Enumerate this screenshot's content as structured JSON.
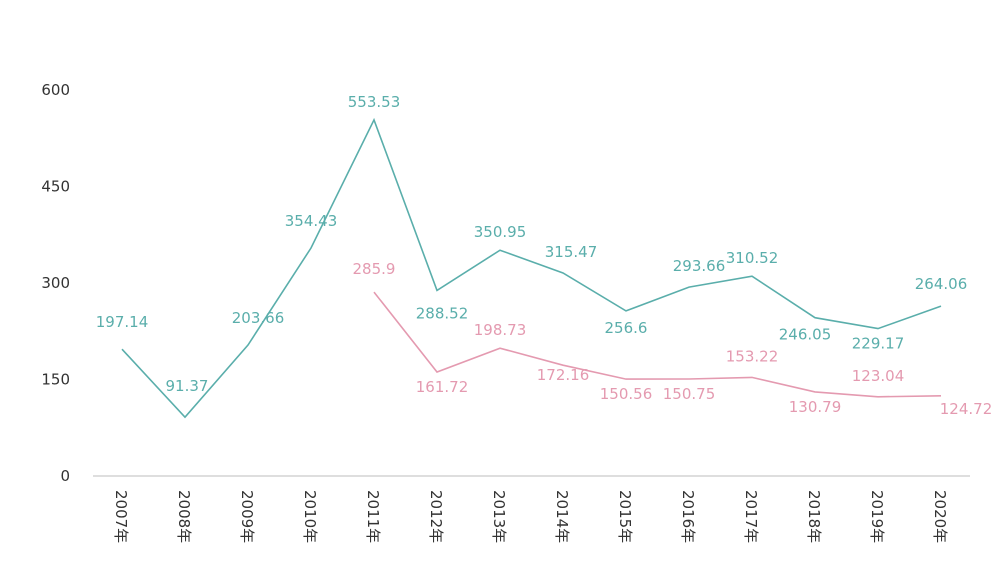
{
  "chart_data": {
    "type": "line",
    "title": "",
    "xlabel": "",
    "ylabel": "",
    "categories": [
      "2007年",
      "2008年",
      "2009年",
      "2010年",
      "2011年",
      "2012年",
      "2013年",
      "2014年",
      "2015年",
      "2016年",
      "2017年",
      "2018年",
      "2019年",
      "2020年"
    ],
    "ylim": [
      0,
      600
    ],
    "yticks": [
      0,
      150,
      300,
      450,
      600
    ],
    "grid": false,
    "series": [
      {
        "color": "#5aaeab",
        "values": [
          197.14,
          91.37,
          203.66,
          354.43,
          553.53,
          288.52,
          350.95,
          315.47,
          256.6,
          293.66,
          310.52,
          246.05,
          229.17,
          264.06
        ],
        "labels": [
          "197.14",
          "91.37",
          "203.66",
          "354.43",
          "553.53",
          "288.52",
          "350.95",
          "315.47",
          "256.6",
          "293.66",
          "310.52",
          "246.05",
          "229.17",
          "264.06"
        ]
      },
      {
        "color": "#e49ab0",
        "values": [
          null,
          null,
          null,
          null,
          285.9,
          161.72,
          198.73,
          172.16,
          150.56,
          150.75,
          153.22,
          130.79,
          123.04,
          124.72
        ],
        "labels": [
          null,
          null,
          null,
          null,
          "285.9",
          "161.72",
          "198.73",
          "172.16",
          "150.56",
          "150.75",
          "153.22",
          "130.79",
          "123.04",
          "124.72"
        ]
      }
    ]
  }
}
